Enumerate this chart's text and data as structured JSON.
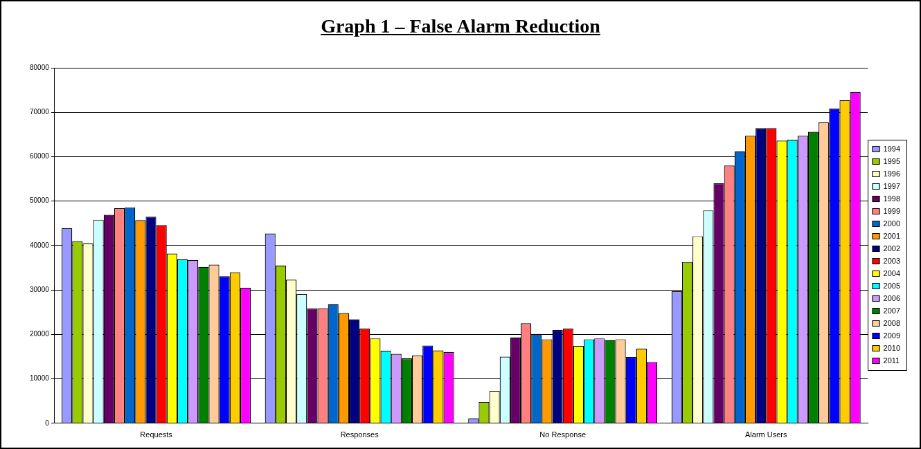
{
  "chart_data": {
    "type": "bar",
    "title": "Graph 1 – False Alarm Reduction",
    "categories": [
      "Requests",
      "Responses",
      "No Response",
      "Alarm Users"
    ],
    "ylim": [
      0,
      80000
    ],
    "yticks": [
      0,
      10000,
      20000,
      30000,
      40000,
      50000,
      60000,
      70000,
      80000
    ],
    "grid": "y",
    "legend": "right",
    "series": [
      {
        "name": "1994",
        "color": "#9999ff",
        "values": [
          43900,
          42700,
          1100,
          29700
        ]
      },
      {
        "name": "1995",
        "color": "#99cc00",
        "values": [
          41000,
          35500,
          4800,
          36300
        ]
      },
      {
        "name": "1996",
        "color": "#ffffcc",
        "values": [
          40500,
          32300,
          7300,
          42100
        ]
      },
      {
        "name": "1997",
        "color": "#ccffff",
        "values": [
          45800,
          29100,
          15000,
          47900
        ]
      },
      {
        "name": "1998",
        "color": "#660066",
        "values": [
          46900,
          25800,
          19300,
          54000
        ]
      },
      {
        "name": "1999",
        "color": "#ff8080",
        "values": [
          48400,
          25900,
          22500,
          58000
        ]
      },
      {
        "name": "2000",
        "color": "#0066cc",
        "values": [
          48600,
          26800,
          20100,
          61200
        ]
      },
      {
        "name": "2001",
        "color": "#ff9900",
        "values": [
          45700,
          24800,
          18900,
          64700
        ]
      },
      {
        "name": "2002",
        "color": "#000080",
        "values": [
          46500,
          23400,
          21000,
          66400
        ]
      },
      {
        "name": "2003",
        "color": "#ff0000",
        "values": [
          44600,
          21300,
          21300,
          66400
        ]
      },
      {
        "name": "2004",
        "color": "#ffff00",
        "values": [
          38200,
          19100,
          17400,
          63600
        ]
      },
      {
        "name": "2005",
        "color": "#00ffff",
        "values": [
          36900,
          16300,
          18900,
          63800
        ]
      },
      {
        "name": "2006",
        "color": "#cc99ff",
        "values": [
          36700,
          15600,
          19100,
          64700
        ]
      },
      {
        "name": "2007",
        "color": "#008000",
        "values": [
          35200,
          14600,
          18700,
          65600
        ]
      },
      {
        "name": "2008",
        "color": "#ffcc99",
        "values": [
          35700,
          15300,
          18900,
          67700
        ]
      },
      {
        "name": "2009",
        "color": "#0000ff",
        "values": [
          33100,
          17500,
          14900,
          70800
        ]
      },
      {
        "name": "2010",
        "color": "#ffcc00",
        "values": [
          34000,
          16400,
          16800,
          72700
        ]
      },
      {
        "name": "2011",
        "color": "#ff00ff",
        "values": [
          30500,
          16000,
          13800,
          74600
        ]
      }
    ]
  }
}
